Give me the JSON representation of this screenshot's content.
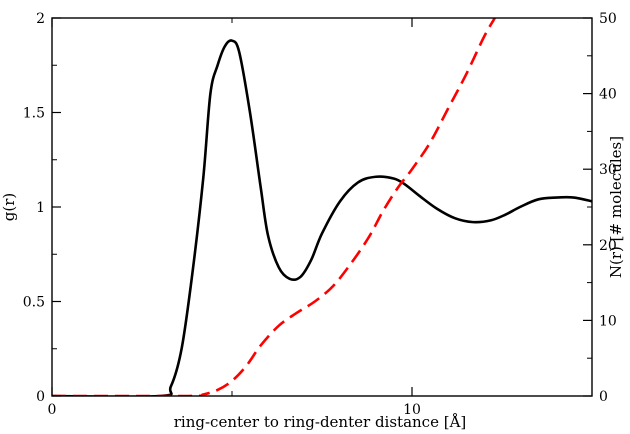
{
  "chart_data": {
    "type": "line",
    "title": "",
    "xlabel": "ring-center to ring-denter distance [Å]",
    "ylabel": "g(r)",
    "y2label": "N(r) [# molecules]",
    "xlim": [
      0,
      15
    ],
    "ylim": [
      0,
      2
    ],
    "y2lim": [
      0,
      50
    ],
    "x_major_ticks": [
      0,
      10
    ],
    "x_minor_ticks": [
      5
    ],
    "y_ticks": [
      0,
      0.5,
      1,
      1.5,
      2
    ],
    "y2_ticks": [
      0,
      10,
      20,
      30,
      40,
      50
    ],
    "grid": false,
    "legend": "none",
    "series": [
      {
        "axis": "left",
        "color": "#000000",
        "style": "solid",
        "x": [
          0,
          3.0,
          3.3,
          3.6,
          3.9,
          4.2,
          4.4,
          4.6,
          4.8,
          5.0,
          5.2,
          5.5,
          5.8,
          6.0,
          6.3,
          6.6,
          6.9,
          7.2,
          7.5,
          8.0,
          8.5,
          9.0,
          9.5,
          9.8,
          10.2,
          10.7,
          11.2,
          11.7,
          12.2,
          12.6,
          13.0,
          13.5,
          14.0,
          14.5,
          15.0
        ],
        "y": [
          0,
          0.0,
          0.05,
          0.25,
          0.65,
          1.15,
          1.6,
          1.75,
          1.85,
          1.88,
          1.82,
          1.5,
          1.1,
          0.85,
          0.68,
          0.62,
          0.63,
          0.72,
          0.86,
          1.03,
          1.13,
          1.16,
          1.15,
          1.12,
          1.06,
          0.99,
          0.94,
          0.92,
          0.93,
          0.96,
          1.0,
          1.04,
          1.05,
          1.05,
          1.03
        ]
      },
      {
        "axis": "right",
        "color": "#ff0000",
        "style": "dashed",
        "x": [
          0,
          3.8,
          4.2,
          4.6,
          5.0,
          5.4,
          5.8,
          6.3,
          6.8,
          7.3,
          7.8,
          8.3,
          8.8,
          9.2,
          9.6,
          10.0,
          10.5,
          11.0,
          11.5,
          12.0,
          12.3
        ],
        "y": [
          0,
          0.0,
          0.2,
          0.8,
          2.0,
          4.0,
          6.7,
          9.3,
          11.0,
          12.5,
          14.5,
          17.5,
          21.0,
          24.5,
          27.5,
          30.0,
          33.5,
          38.0,
          42.5,
          47.5,
          50.0
        ]
      }
    ]
  }
}
